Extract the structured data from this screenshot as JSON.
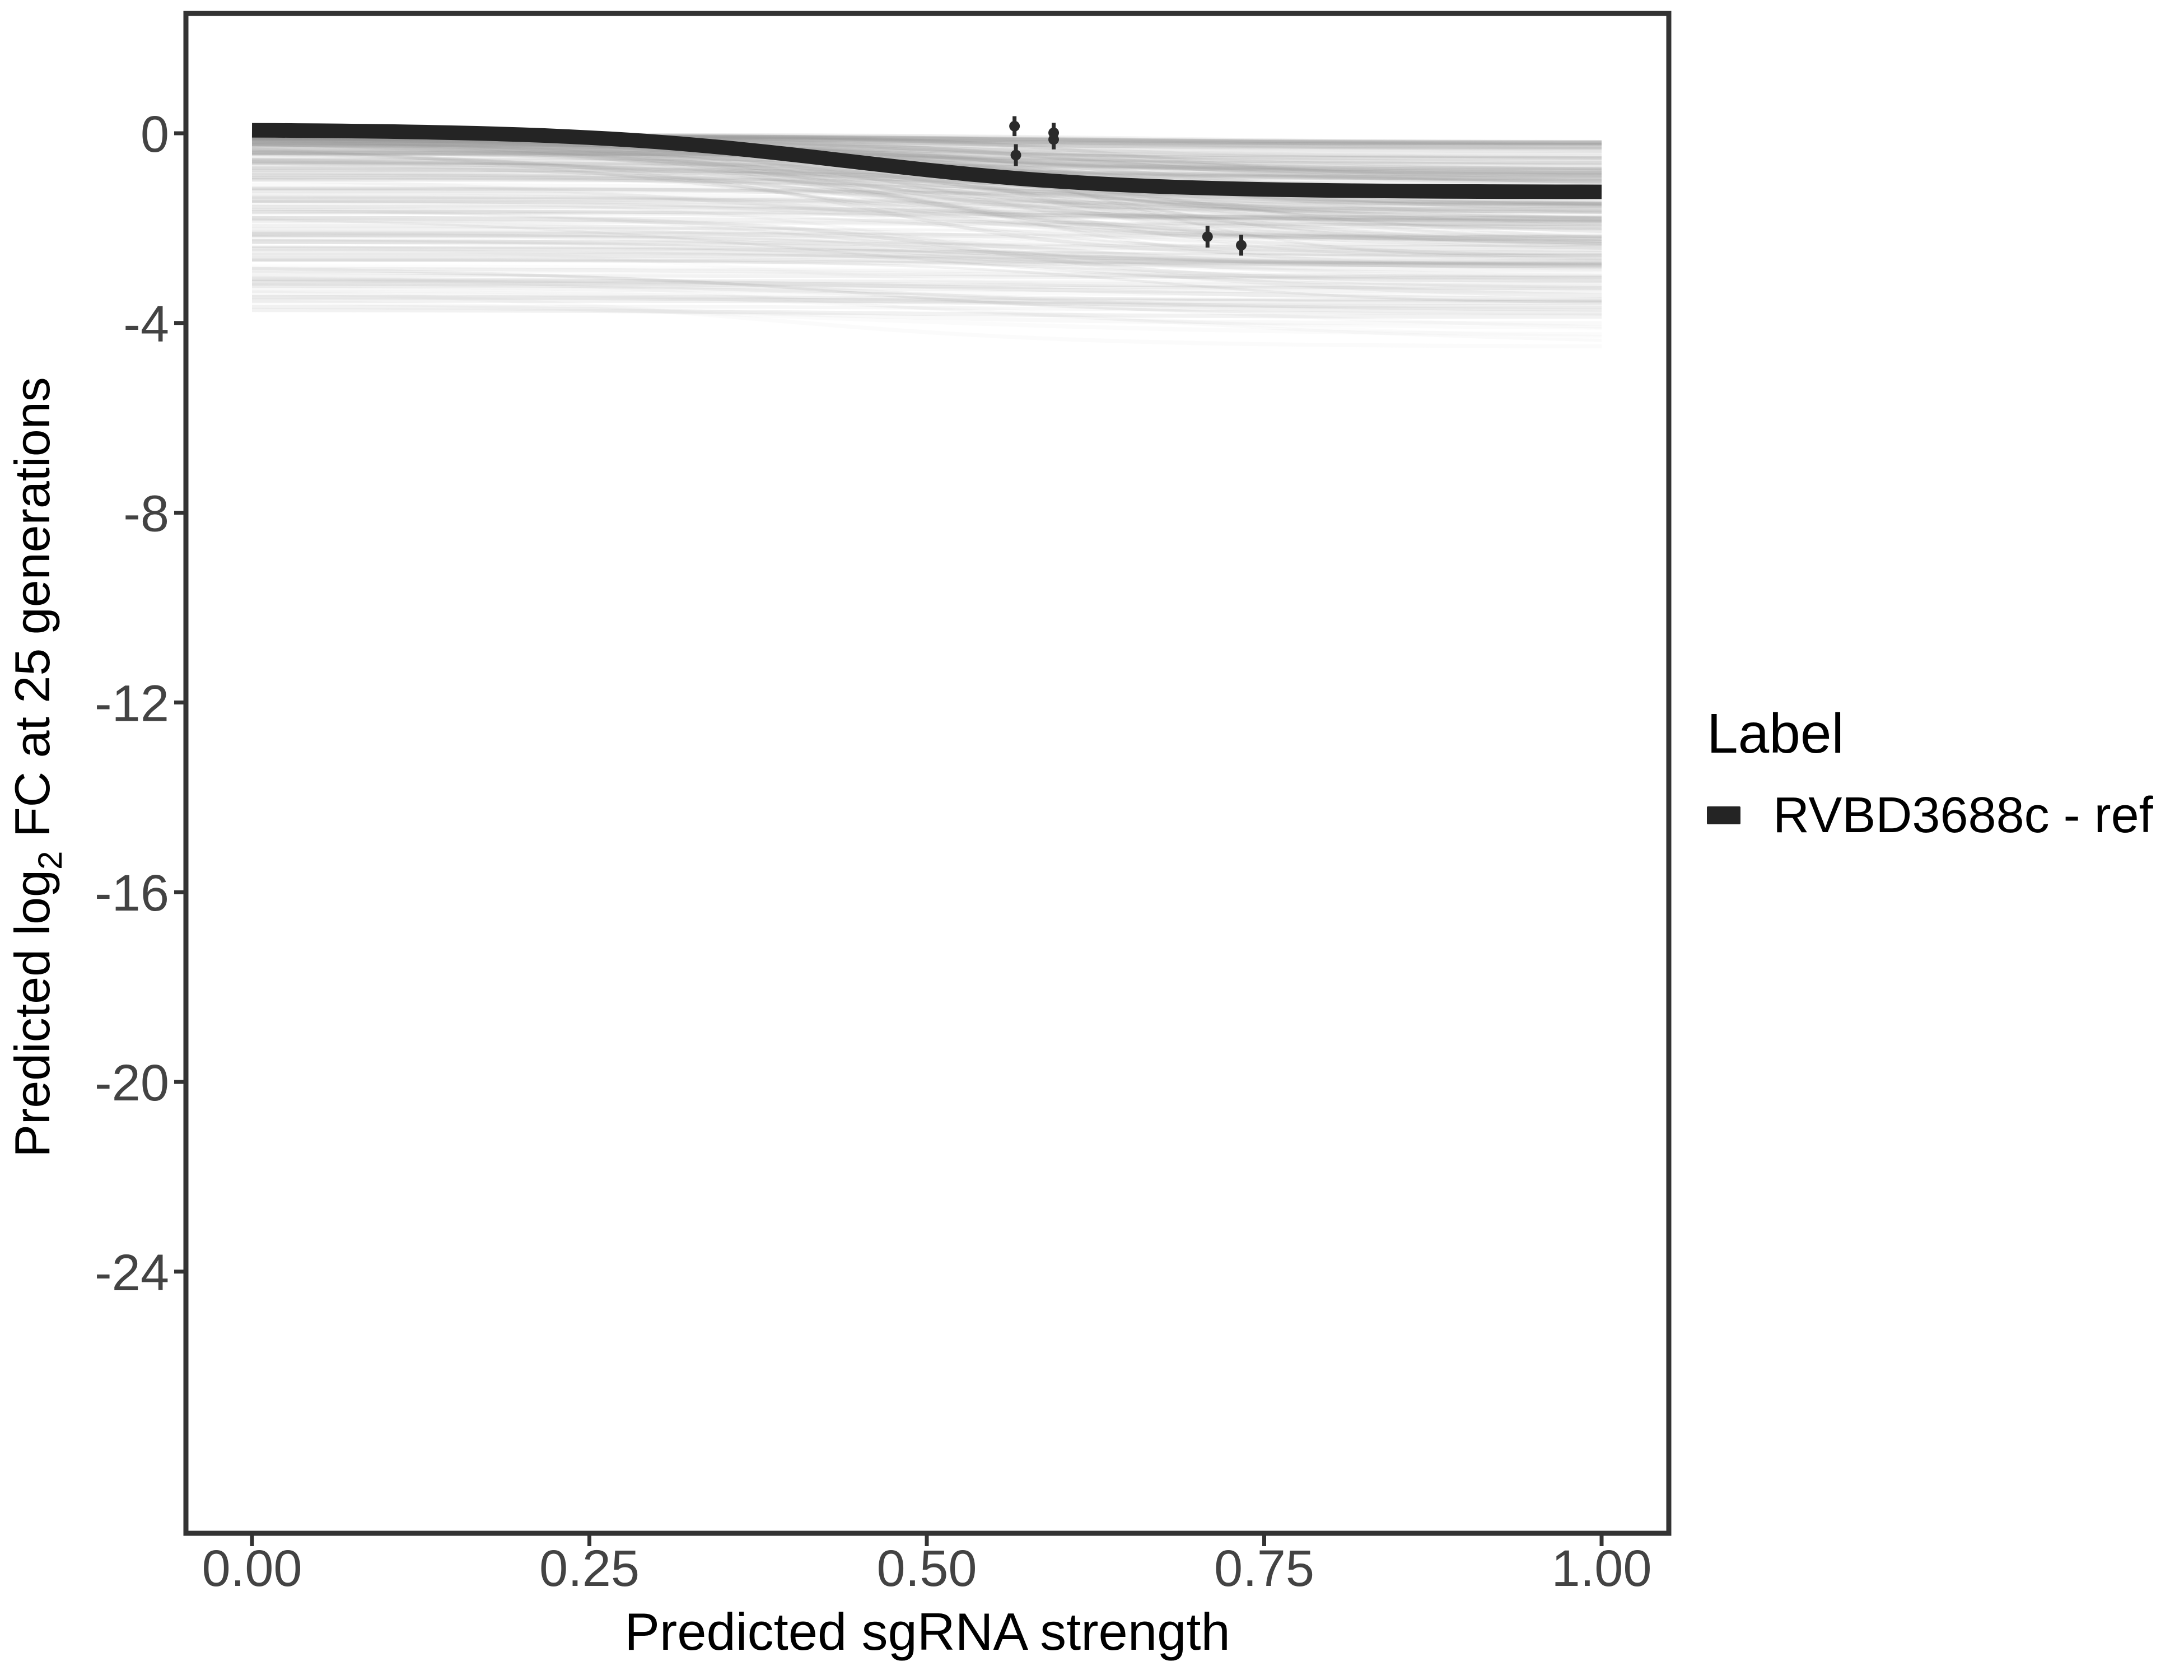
{
  "figure": {
    "background": "#ffffff"
  },
  "colors": {
    "axis_line": "#333333",
    "tick_label": "#434343",
    "title_text": "#000000",
    "reference_curve": "#242424",
    "point": "#2b2b2b",
    "ensemble": "#9a9a9a",
    "ensemble_stray": "#a8a8a8"
  },
  "chart_data": {
    "type": "line",
    "title": "",
    "xlabel": "Predicted sgRNA strength",
    "ylabel": "Predicted log2 FC at 25 generations",
    "ylabel_parts": {
      "prefix": "Predicted  log",
      "sub": "2",
      "suffix": " FC at 25 generations"
    },
    "xlim": [
      -0.05,
      1.05
    ],
    "ylim": [
      -29.5,
      2.5
    ],
    "grid": "off",
    "legend_position": "right",
    "x_ticks": {
      "values": [
        0,
        0.25,
        0.5,
        0.75,
        1
      ],
      "labels": [
        "0.00",
        "0.25",
        "0.50",
        "0.75",
        "1.00"
      ]
    },
    "y_ticks": {
      "values": [
        0,
        -4,
        -8,
        -12,
        -16,
        -20,
        -24
      ],
      "labels": [
        "0",
        "-4",
        "-8",
        "-12",
        "-16",
        "-20",
        "-24"
      ]
    },
    "legend": {
      "title": "Label",
      "entries": [
        {
          "label": "RVBD3688c - ref",
          "color": "#242424",
          "type": "line"
        }
      ]
    },
    "series": [
      {
        "name": "RVBD3688c - ref",
        "role": "reference",
        "color": "#242424",
        "x": [
          0.0,
          0.1,
          0.2,
          0.3,
          0.4,
          0.5,
          0.6,
          0.7,
          0.8,
          0.9,
          1.0
        ],
        "values": [
          0.06,
          0.04,
          -0.03,
          -0.18,
          -0.45,
          -0.78,
          -1.02,
          -1.15,
          -1.21,
          -1.23,
          -1.23
        ],
        "sigmoid": {
          "y0": 0.08,
          "drop": 1.32,
          "k": 10,
          "m": 0.44
        }
      }
    ],
    "pointranges": [
      {
        "x": 0.565,
        "y": 0.15,
        "err": 0.21
      },
      {
        "x": 0.594,
        "y": 0.01,
        "err": 0.21
      },
      {
        "x": 0.594,
        "y": -0.13,
        "err": 0.21
      },
      {
        "x": 0.566,
        "y": -0.46,
        "err": 0.23
      },
      {
        "x": 0.708,
        "y": -2.18,
        "err": 0.23
      },
      {
        "x": 0.733,
        "y": -2.36,
        "err": 0.22
      }
    ],
    "ensemble": {
      "description": "translucent gray ensemble of predicted knockdown sigmoid curves, 0 to about -4.5",
      "count": 240,
      "stray_count": 16,
      "seed": 11
    }
  }
}
